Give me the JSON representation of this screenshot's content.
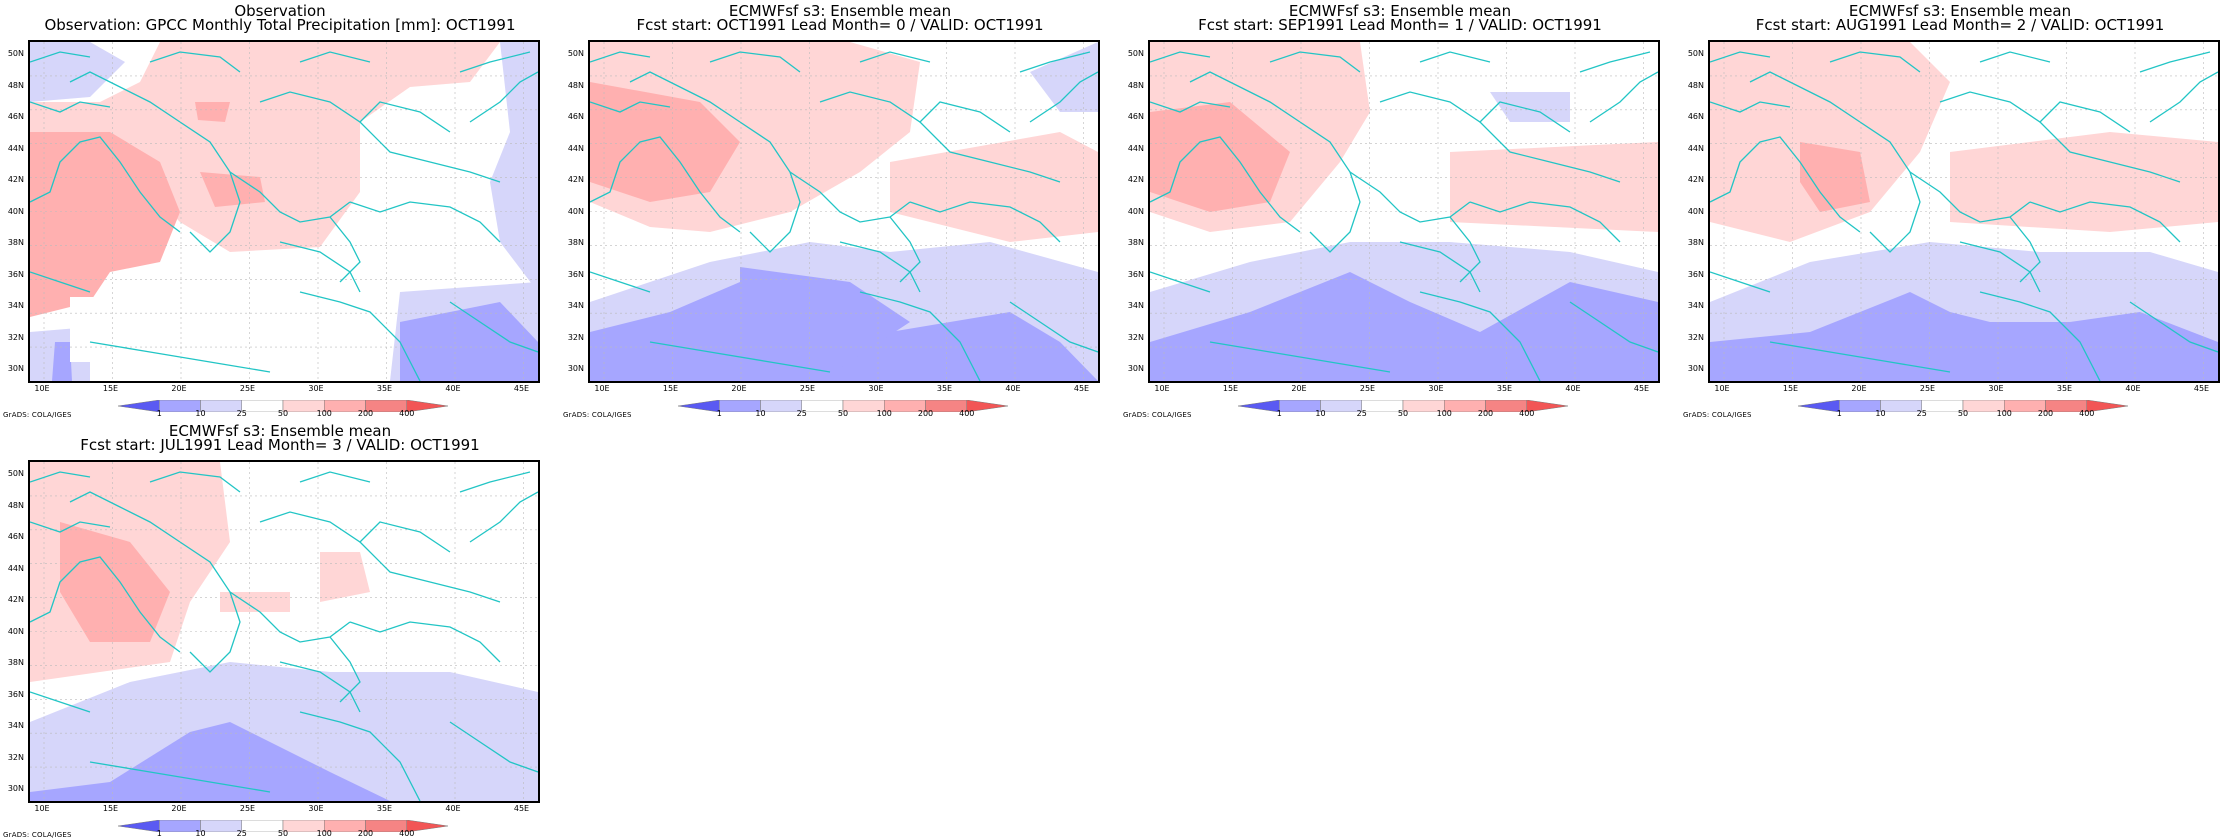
{
  "colors": {
    "land_border": "#22c5c5",
    "grid": "#bbbbbb",
    "frame": "#000000",
    "levels": [
      "#5a5af2",
      "#a6a6ff",
      "#d6d6fa",
      "#ffffff",
      "#ffd6d6",
      "#ffb0b0",
      "#f58484",
      "#f25656"
    ]
  },
  "colorbar": {
    "labels": [
      "1",
      "10",
      "25",
      "50",
      "100",
      "200",
      "400"
    ]
  },
  "axes": {
    "y_labels": [
      "50N",
      "48N",
      "46N",
      "44N",
      "42N",
      "40N",
      "38N",
      "36N",
      "34N",
      "32N",
      "30N"
    ],
    "x_labels": [
      "10E",
      "15E",
      "20E",
      "25E",
      "30E",
      "35E",
      "40E",
      "45E"
    ]
  },
  "credit": "GrADS: COLA/IGES",
  "panels": [
    {
      "title_line1": "Observation",
      "title_line2": "Observation: GPCC Monthly Total Precipitation [mm]: OCT1991",
      "variant": "obs"
    },
    {
      "title_line1": "ECMWFsf s3: Ensemble mean",
      "title_line2": "Fcst start: OCT1991  Lead Month= 0 / VALID: OCT1991",
      "variant": "lead0"
    },
    {
      "title_line1": "ECMWFsf s3: Ensemble mean",
      "title_line2": "Fcst start: SEP1991  Lead Month= 1 / VALID: OCT1991",
      "variant": "lead1"
    },
    {
      "title_line1": "ECMWFsf s3: Ensemble mean",
      "title_line2": "Fcst start: AUG1991  Lead Month= 2 / VALID: OCT1991",
      "variant": "lead2"
    },
    {
      "title_line1": "ECMWFsf s3: Ensemble mean",
      "title_line2": "Fcst start: JUL1991  Lead Month= 3 / VALID: OCT1991",
      "variant": "lead3"
    }
  ]
}
